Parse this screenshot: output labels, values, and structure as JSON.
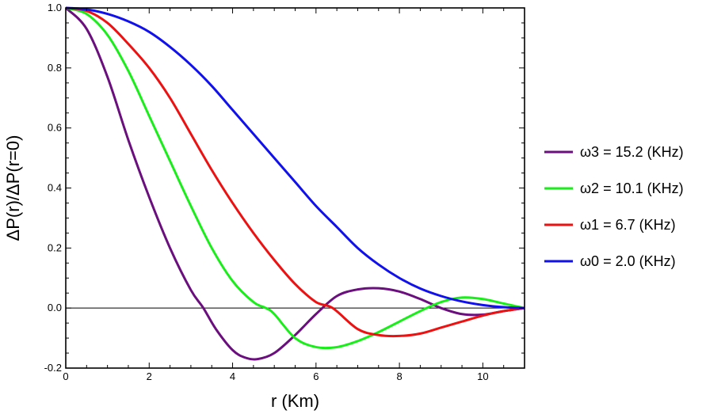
{
  "chart_data": {
    "type": "line",
    "xlabel": "r (Km)",
    "ylabel": "ΔP(r)/ΔP(r=0)",
    "xlim": [
      0,
      11
    ],
    "ylim": [
      -0.2,
      1.0
    ],
    "x_ticks": [
      "0",
      "2",
      "4",
      "6",
      "8",
      "10"
    ],
    "x_tick_values": [
      0,
      2,
      4,
      6,
      8,
      10
    ],
    "y_ticks": [
      "-0.2",
      "0.0",
      "0.2",
      "0.4",
      "0.6",
      "0.8",
      "1.0"
    ],
    "y_tick_values": [
      -0.2,
      0.0,
      0.2,
      0.4,
      0.6,
      0.8,
      1.0
    ],
    "grid": false,
    "zero_line": true,
    "legend_position": "right",
    "series": [
      {
        "name": "ω3 = 15.2 (KHz)",
        "color": "#6b0f7f",
        "x": [
          0,
          0.5,
          1.0,
          1.5,
          2.0,
          2.5,
          3.0,
          3.3,
          3.6,
          4.0,
          4.3,
          4.6,
          5.0,
          5.5,
          6.0,
          6.5,
          7.0,
          7.5,
          8.0,
          8.5,
          9.0,
          9.5,
          10.0,
          10.5,
          11.0
        ],
        "y": [
          1.0,
          0.93,
          0.77,
          0.56,
          0.37,
          0.2,
          0.06,
          0.0,
          -0.07,
          -0.14,
          -0.165,
          -0.17,
          -0.15,
          -0.09,
          -0.02,
          0.04,
          0.062,
          0.066,
          0.055,
          0.03,
          0.0,
          -0.02,
          -0.022,
          -0.01,
          0.0
        ]
      },
      {
        "name": "ω2 = 10.1 (KHz)",
        "color": "#1aee1a",
        "x": [
          0,
          0.5,
          1.0,
          1.5,
          2.0,
          2.5,
          3.0,
          3.5,
          4.0,
          4.5,
          4.8,
          5.0,
          5.5,
          6.0,
          6.5,
          7.0,
          7.5,
          8.0,
          8.5,
          9.0,
          9.5,
          10.0,
          10.5,
          11.0
        ],
        "y": [
          1.0,
          0.98,
          0.91,
          0.79,
          0.64,
          0.49,
          0.34,
          0.2,
          0.09,
          0.02,
          0.0,
          -0.02,
          -0.1,
          -0.13,
          -0.13,
          -0.11,
          -0.08,
          -0.045,
          -0.01,
          0.02,
          0.035,
          0.03,
          0.015,
          0.0
        ]
      },
      {
        "name": "ω1 = 6.7 (KHz)",
        "color": "#ee1111",
        "x": [
          0,
          0.5,
          1.0,
          1.5,
          2.0,
          2.5,
          3.0,
          3.5,
          4.0,
          4.5,
          5.0,
          5.5,
          6.0,
          6.4,
          7.0,
          7.5,
          8.0,
          8.5,
          9.0,
          9.5,
          10.0,
          10.5,
          11.0
        ],
        "y": [
          1.0,
          0.99,
          0.95,
          0.88,
          0.8,
          0.7,
          0.58,
          0.46,
          0.35,
          0.25,
          0.16,
          0.08,
          0.02,
          0.0,
          -0.07,
          -0.09,
          -0.093,
          -0.085,
          -0.065,
          -0.045,
          -0.025,
          -0.01,
          0.0
        ]
      },
      {
        "name": "ω0 = 2.0 (KHz)",
        "color": "#1111ee",
        "x": [
          0,
          0.5,
          1.0,
          1.5,
          2.0,
          2.5,
          3.0,
          3.5,
          4.0,
          4.5,
          5.0,
          5.5,
          6.0,
          6.5,
          7.0,
          7.5,
          8.0,
          8.5,
          9.0,
          9.5,
          10.0,
          10.5,
          11.0
        ],
        "y": [
          1.0,
          0.995,
          0.98,
          0.955,
          0.92,
          0.87,
          0.81,
          0.74,
          0.66,
          0.58,
          0.5,
          0.42,
          0.34,
          0.27,
          0.2,
          0.145,
          0.1,
          0.065,
          0.04,
          0.022,
          0.01,
          0.003,
          0.0
        ]
      }
    ]
  }
}
